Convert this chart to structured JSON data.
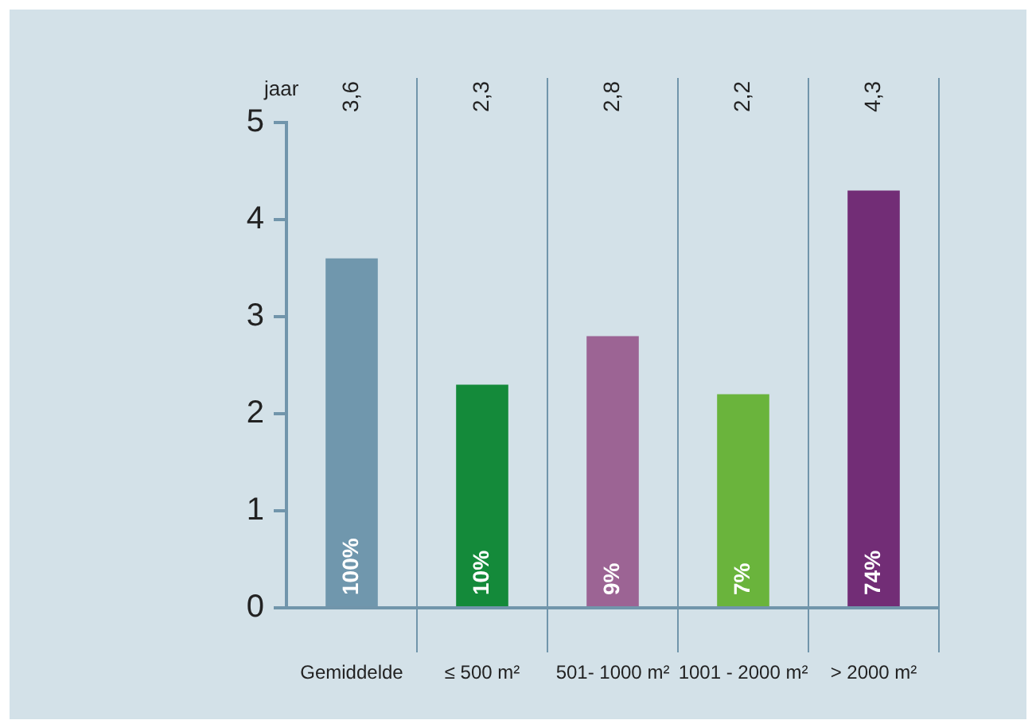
{
  "chart_data": {
    "type": "bar",
    "ylabel": "jaar",
    "categories": [
      "Gemiddelde",
      "≤ 500 m²",
      "501- 1000 m²",
      "1001 - 2000 m²",
      "> 2000 m²"
    ],
    "values": [
      3.6,
      2.3,
      2.8,
      2.2,
      4.3
    ],
    "colors": [
      "#7097ad",
      "#148a3a",
      "#9c6494",
      "#6ab43c",
      "#722d76"
    ],
    "annotations": [
      "3,6",
      "2,3",
      "2,8",
      "2,2",
      "4,3",
      "100%",
      "10%",
      "9%",
      "7%",
      "74%"
    ],
    "ylim": [
      0,
      5
    ],
    "yticks": [
      0,
      1,
      2,
      3,
      4,
      5
    ],
    "grid": "x"
  }
}
